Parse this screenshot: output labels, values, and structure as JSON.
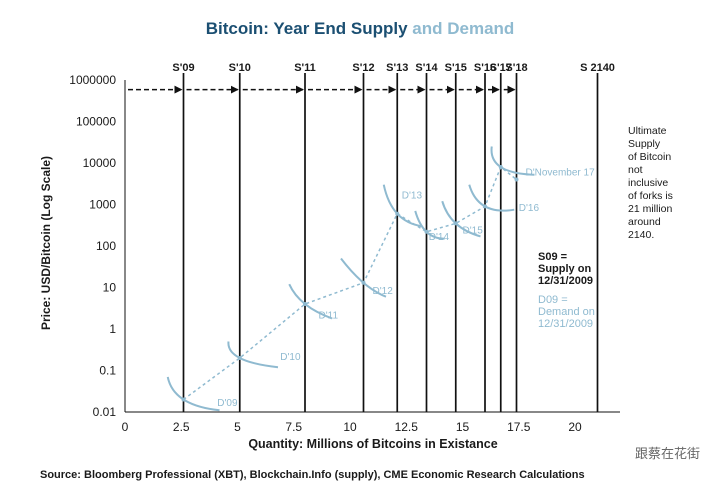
{
  "chart_data": {
    "type": "line",
    "title_part1": "Bitcoin: Year End Supply",
    "title_part2": " and Demand",
    "xlabel": "Quantity: Millions of Bitcoins in Existance",
    "ylabel": "Price: USD/Bitcoin (Log Scale)",
    "source": "Source: Bloomberg Professional (XBT), Blockchain.Info (supply), CME Economic Research Calculations",
    "watermark": "跟蔡在花街",
    "xlim": [
      0,
      22
    ],
    "ylim": [
      0.01,
      1000000
    ],
    "y_scale": "log",
    "x_ticks": [
      {
        "v": 0,
        "label": "0"
      },
      {
        "v": 2.5,
        "label": "2.5"
      },
      {
        "v": 5,
        "label": "5"
      },
      {
        "v": 7.5,
        "label": "7.5"
      },
      {
        "v": 10,
        "label": "10"
      },
      {
        "v": 12.5,
        "label": "12.5"
      },
      {
        "v": 15,
        "label": "15"
      },
      {
        "v": 17.5,
        "label": "17.5"
      },
      {
        "v": 20,
        "label": "20"
      }
    ],
    "y_ticks": [
      {
        "v": 0.01,
        "label": "0.01"
      },
      {
        "v": 0.1,
        "label": "0.1"
      },
      {
        "v": 1,
        "label": "1"
      },
      {
        "v": 10,
        "label": "10"
      },
      {
        "v": 100,
        "label": "100"
      },
      {
        "v": 1000,
        "label": "1000"
      },
      {
        "v": 10000,
        "label": "10000"
      },
      {
        "v": 100000,
        "label": "100000"
      },
      {
        "v": 1000000,
        "label": "1000000"
      }
    ],
    "supply_lines": [
      {
        "label": "S'09",
        "x": 2.6
      },
      {
        "label": "S'10",
        "x": 5.1
      },
      {
        "label": "S'11",
        "x": 8.0
      },
      {
        "label": "S'12",
        "x": 10.6
      },
      {
        "label": "S'13",
        "x": 12.1
      },
      {
        "label": "S'14",
        "x": 13.4
      },
      {
        "label": "S'15",
        "x": 14.7
      },
      {
        "label": "S'16",
        "x": 16.0
      },
      {
        "label": "S'17",
        "x": 16.7
      },
      {
        "label": "S'18",
        "x": 17.4
      },
      {
        "label": "S 2140",
        "x": 21.0
      }
    ],
    "path": [
      {
        "x": 2.6,
        "y": 0.02
      },
      {
        "x": 5.1,
        "y": 0.2
      },
      {
        "x": 8.0,
        "y": 4
      },
      {
        "x": 10.6,
        "y": 13
      },
      {
        "x": 12.1,
        "y": 600
      },
      {
        "x": 13.4,
        "y": 220
      },
      {
        "x": 14.7,
        "y": 350
      },
      {
        "x": 16.0,
        "y": 900
      },
      {
        "x": 16.7,
        "y": 8000
      },
      {
        "x": 17.4,
        "y": 4000
      }
    ],
    "demand_curves": [
      {
        "label": "D'09",
        "points": [
          {
            "x": 1.9,
            "y": 0.07
          },
          {
            "x": 2.6,
            "y": 0.02
          },
          {
            "x": 4.2,
            "y": 0.011
          }
        ],
        "lx": 4.1,
        "ly": 0.014
      },
      {
        "label": "D'10",
        "points": [
          {
            "x": 4.6,
            "y": 0.5
          },
          {
            "x": 5.1,
            "y": 0.2
          },
          {
            "x": 6.8,
            "y": 0.12
          }
        ],
        "lx": 6.9,
        "ly": 0.18
      },
      {
        "label": "D'11",
        "points": [
          {
            "x": 7.3,
            "y": 12
          },
          {
            "x": 8.0,
            "y": 4
          },
          {
            "x": 9.2,
            "y": 1.8
          }
        ],
        "lx": 8.6,
        "ly": 1.8
      },
      {
        "label": "D'12",
        "points": [
          {
            "x": 9.6,
            "y": 50
          },
          {
            "x": 10.6,
            "y": 13
          },
          {
            "x": 11.6,
            "y": 6
          }
        ],
        "lx": 11.0,
        "ly": 7
      },
      {
        "label": "D'13",
        "points": [
          {
            "x": 11.5,
            "y": 3000
          },
          {
            "x": 12.1,
            "y": 600
          },
          {
            "x": 13.2,
            "y": 300
          }
        ],
        "lx": 12.3,
        "ly": 1400
      },
      {
        "label": "D'14",
        "points": [
          {
            "x": 12.9,
            "y": 700
          },
          {
            "x": 13.4,
            "y": 220
          },
          {
            "x": 14.2,
            "y": 150
          }
        ],
        "lx": 13.5,
        "ly": 140
      },
      {
        "label": "D'15",
        "points": [
          {
            "x": 14.1,
            "y": 1200
          },
          {
            "x": 14.7,
            "y": 350
          },
          {
            "x": 15.8,
            "y": 170
          }
        ],
        "lx": 15.0,
        "ly": 200
      },
      {
        "label": "D'16",
        "points": [
          {
            "x": 15.3,
            "y": 3000
          },
          {
            "x": 16.0,
            "y": 900
          },
          {
            "x": 17.3,
            "y": 750
          }
        ],
        "lx": 17.5,
        "ly": 700
      },
      {
        "label": "D'November 17",
        "points": [
          {
            "x": 16.3,
            "y": 25000
          },
          {
            "x": 16.7,
            "y": 8000
          },
          {
            "x": 18.2,
            "y": 5200
          }
        ],
        "lx": 17.8,
        "ly": 5000
      }
    ],
    "note_right": [
      "Ultimate",
      "Supply",
      "of Bitcoin",
      "not",
      "inclusive",
      "of forks is",
      "21 million",
      "around",
      "2140."
    ],
    "legend_supply": [
      "S09 =",
      "Supply on",
      "12/31/2009"
    ],
    "legend_demand": [
      "D09 =",
      "Demand on",
      "12/31/2009"
    ],
    "colors": {
      "title_dark": "#1b4f72",
      "title_light": "#8fbad0",
      "demand": "#8fbad0",
      "supply": "#111111",
      "text": "#1a1a1a"
    }
  }
}
